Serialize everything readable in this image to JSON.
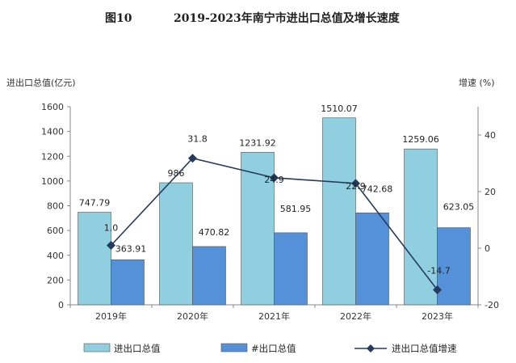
{
  "figure_label": "图10",
  "title": "2019-2023年南宁市进出口总值及增长速度",
  "chart_data": {
    "type": "bar",
    "categories": [
      "2019年",
      "2020年",
      "2021年",
      "2022年",
      "2023年"
    ],
    "series": [
      {
        "name": "进出口总值",
        "kind": "bar",
        "axis": "left",
        "color": "#8fcfe0",
        "values": [
          747.79,
          986,
          1231.92,
          1510.07,
          1259.06
        ],
        "labels": [
          "747.79",
          "986",
          "1231.92",
          "1510.07",
          "1259.06"
        ]
      },
      {
        "name": "#出口总值",
        "kind": "bar",
        "axis": "left",
        "color": "#5591d8",
        "values": [
          363.91,
          470.82,
          581.95,
          742.68,
          623.05
        ],
        "labels": [
          "363.91",
          "470.82",
          "581.95",
          "742.68",
          "623.05"
        ]
      },
      {
        "name": "进出口总值增速",
        "kind": "line",
        "axis": "right",
        "color": "#243a5e",
        "values": [
          1.0,
          31.8,
          24.9,
          22.9,
          -14.7
        ],
        "labels": [
          "1.0",
          "31.8",
          "24.9",
          "22.9",
          "-14.7"
        ]
      }
    ],
    "ylabel_left": "进出口总值(亿元)",
    "ylabel_right": "增速  (%)",
    "ylim_left": [
      0,
      1600
    ],
    "yticks_left": [
      "0",
      "200",
      "400",
      "600",
      "800",
      "1000",
      "1200",
      "1400",
      "1600"
    ],
    "ylim_right": [
      -20,
      50
    ],
    "yticks_right": [
      "-20",
      "0",
      "20",
      "40"
    ],
    "legend_position": "bottom",
    "grid": false
  }
}
